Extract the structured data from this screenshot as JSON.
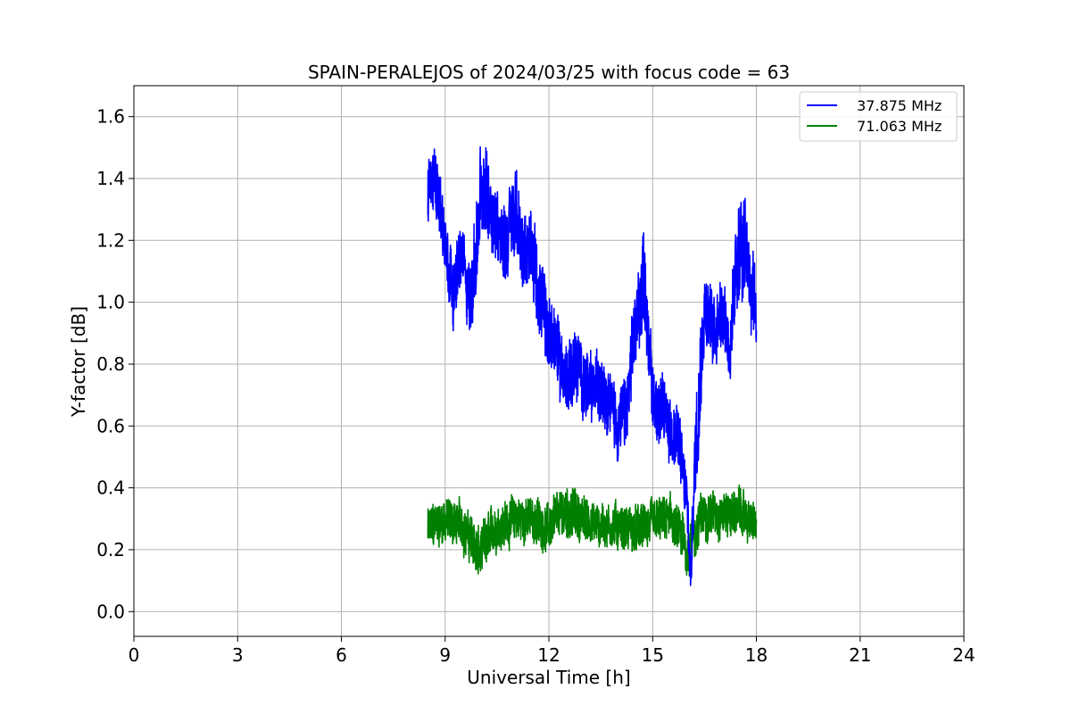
{
  "chart_data": {
    "type": "line",
    "title": "SPAIN-PERALEJOS of 2024/03/25 with focus code = 63",
    "xlabel": "Universal Time [h]",
    "ylabel": "Y-factor [dB]",
    "xlim": [
      0,
      24
    ],
    "ylim": [
      -0.08,
      1.7
    ],
    "xticks": [
      0,
      3,
      6,
      9,
      12,
      15,
      18,
      21,
      24
    ],
    "yticks": [
      0.0,
      0.2,
      0.4,
      0.6,
      0.8,
      1.0,
      1.2,
      1.4,
      1.6
    ],
    "ytick_labels": [
      "0.0",
      "0.2",
      "0.4",
      "0.6",
      "0.8",
      "1.0",
      "1.2",
      "1.4",
      "1.6"
    ],
    "grid": true,
    "legend_position": "top-right",
    "series": [
      {
        "name": "37.875 MHz",
        "color": "#0000ff",
        "x": [
          8.5,
          8.75,
          9.0,
          9.25,
          9.5,
          9.75,
          10.0,
          10.25,
          10.5,
          10.75,
          11.0,
          11.25,
          11.5,
          11.75,
          12.0,
          12.25,
          12.5,
          12.75,
          13.0,
          13.25,
          13.5,
          13.75,
          14.0,
          14.25,
          14.5,
          14.75,
          15.0,
          15.25,
          15.5,
          15.75,
          16.0,
          16.1,
          16.25,
          16.5,
          16.75,
          17.0,
          17.25,
          17.5,
          17.75,
          18.0
        ],
        "mean": [
          1.35,
          1.4,
          1.2,
          1.05,
          1.15,
          1.0,
          1.3,
          1.35,
          1.25,
          1.2,
          1.3,
          1.15,
          1.2,
          1.0,
          0.9,
          0.85,
          0.75,
          0.8,
          0.75,
          0.7,
          0.75,
          0.7,
          0.6,
          0.65,
          0.9,
          1.1,
          0.7,
          0.65,
          0.6,
          0.55,
          0.35,
          0.1,
          0.6,
          1.0,
          0.9,
          1.0,
          0.85,
          1.2,
          1.1,
          1.0
        ],
        "amp": [
          0.2,
          0.18,
          0.2,
          0.18,
          0.18,
          0.2,
          0.28,
          0.25,
          0.2,
          0.22,
          0.25,
          0.2,
          0.2,
          0.22,
          0.22,
          0.2,
          0.2,
          0.2,
          0.18,
          0.18,
          0.18,
          0.18,
          0.18,
          0.2,
          0.22,
          0.25,
          0.18,
          0.18,
          0.18,
          0.18,
          0.18,
          0.1,
          0.3,
          0.22,
          0.2,
          0.2,
          0.18,
          0.3,
          0.25,
          0.22
        ]
      },
      {
        "name": "71.063 MHz",
        "color": "#008000",
        "x": [
          8.5,
          9.0,
          9.5,
          10.0,
          10.5,
          11.0,
          11.5,
          12.0,
          12.5,
          13.0,
          13.5,
          14.0,
          14.5,
          15.0,
          15.5,
          16.0,
          16.5,
          17.0,
          17.5,
          18.0
        ],
        "mean": [
          0.26,
          0.3,
          0.28,
          0.18,
          0.28,
          0.3,
          0.3,
          0.27,
          0.33,
          0.3,
          0.28,
          0.28,
          0.26,
          0.28,
          0.3,
          0.2,
          0.32,
          0.32,
          0.32,
          0.28
        ],
        "amp": [
          0.12,
          0.12,
          0.12,
          0.14,
          0.12,
          0.12,
          0.12,
          0.12,
          0.14,
          0.12,
          0.12,
          0.12,
          0.12,
          0.12,
          0.12,
          0.14,
          0.12,
          0.12,
          0.12,
          0.1
        ]
      }
    ]
  }
}
